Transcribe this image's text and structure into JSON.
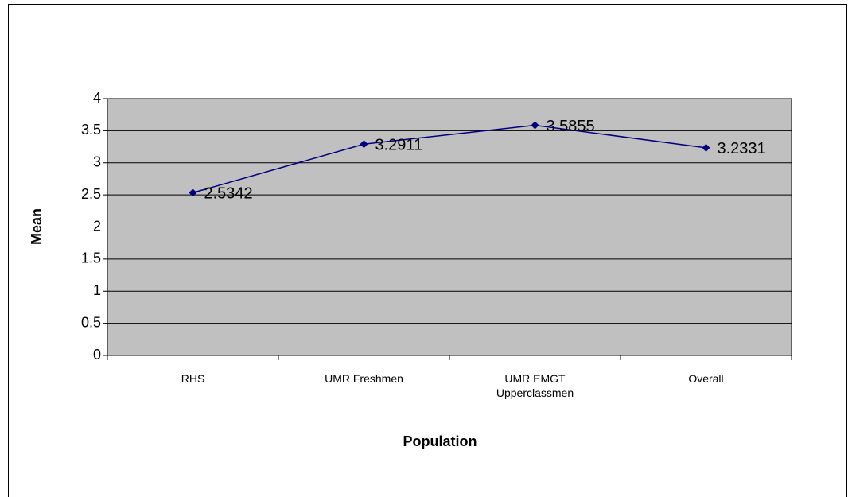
{
  "chart_data": {
    "type": "line",
    "x_label": "Population",
    "y_label": "Mean",
    "categories": [
      "RHS",
      "UMR Freshmen",
      "UMR EMGT Upperclassmen",
      "Overall"
    ],
    "series": [
      {
        "color": "#000080",
        "values": [
          2.5342,
          3.2911,
          3.5855,
          3.2331
        ]
      }
    ],
    "ylim": [
      0,
      4
    ],
    "yticks": [
      0,
      0.5,
      1,
      1.5,
      2,
      2.5,
      3,
      3.5,
      4
    ],
    "grid": true,
    "plot_background": "#c0c0c0",
    "data_labels": true
  }
}
